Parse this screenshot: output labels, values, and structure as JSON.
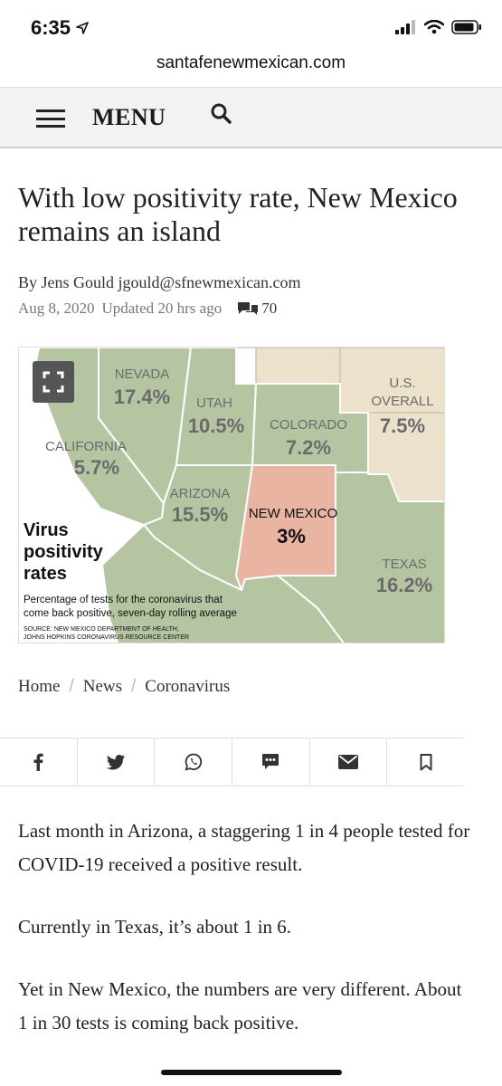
{
  "status": {
    "time": "6:35"
  },
  "browser": {
    "url": "santafenewmexican.com"
  },
  "nav": {
    "menu_label": "MENU"
  },
  "article": {
    "headline": "With low positivity rate, New Mexico remains an island",
    "byline_prefix": "By Jens Gould",
    "author_email": "jgould@sfnewmexican.com",
    "date": "Aug 8, 2020",
    "updated": "Updated 20 hrs ago",
    "comment_count": "70"
  },
  "map": {
    "title_line1": "Virus",
    "title_line2": "positivity",
    "title_line3": "rates",
    "caption_line1": "Percentage of tests for the coronavirus that",
    "caption_line2": "come back positive, seven-day rolling average",
    "source_line1": "SOURCE: NEW MEXICO DEPARTMENT OF HEALTH,",
    "source_line2": "JOHNS HOPKINS CORONAVIRUS RESOURCE CENTER",
    "states": {
      "nevada": {
        "name": "NEVADA",
        "value": "17.4%"
      },
      "utah": {
        "name": "UTAH",
        "value": "10.5%"
      },
      "colorado": {
        "name": "COLORADO",
        "value": "7.2%"
      },
      "us_line1": "U.S.",
      "us_line2": "OVERALL",
      "us_value": "7.5%",
      "california": {
        "name": "CALIFORNIA",
        "value": "5.7%"
      },
      "arizona": {
        "name": "ARIZONA",
        "value": "15.5%"
      },
      "new_mexico": {
        "name": "NEW MEXICO",
        "value": "3%"
      },
      "texas": {
        "name": "TEXAS",
        "value": "16.2%"
      }
    },
    "colors": {
      "green": "#b5c5a1",
      "tan": "#ece1cb",
      "highlight": "#e9b4a2",
      "label": "#6b6b6b",
      "ocean": "#ffffff"
    }
  },
  "breadcrumb": {
    "home": "Home",
    "news": "News",
    "section": "Coronavirus",
    "sep": "/"
  },
  "share": {
    "icons": [
      "facebook-icon",
      "twitter-icon",
      "whatsapp-icon",
      "sms-icon",
      "email-icon",
      "bookmark-icon"
    ]
  },
  "body": {
    "p1": "Last month in Arizona, a staggering 1 in 4 people tested for COVID-19 received a positive result.",
    "p2": "Currently in Texas, it’s about 1 in 6.",
    "p3": "Yet in New Mexico, the numbers are very different. About 1 in 30 tests is coming back positive."
  }
}
